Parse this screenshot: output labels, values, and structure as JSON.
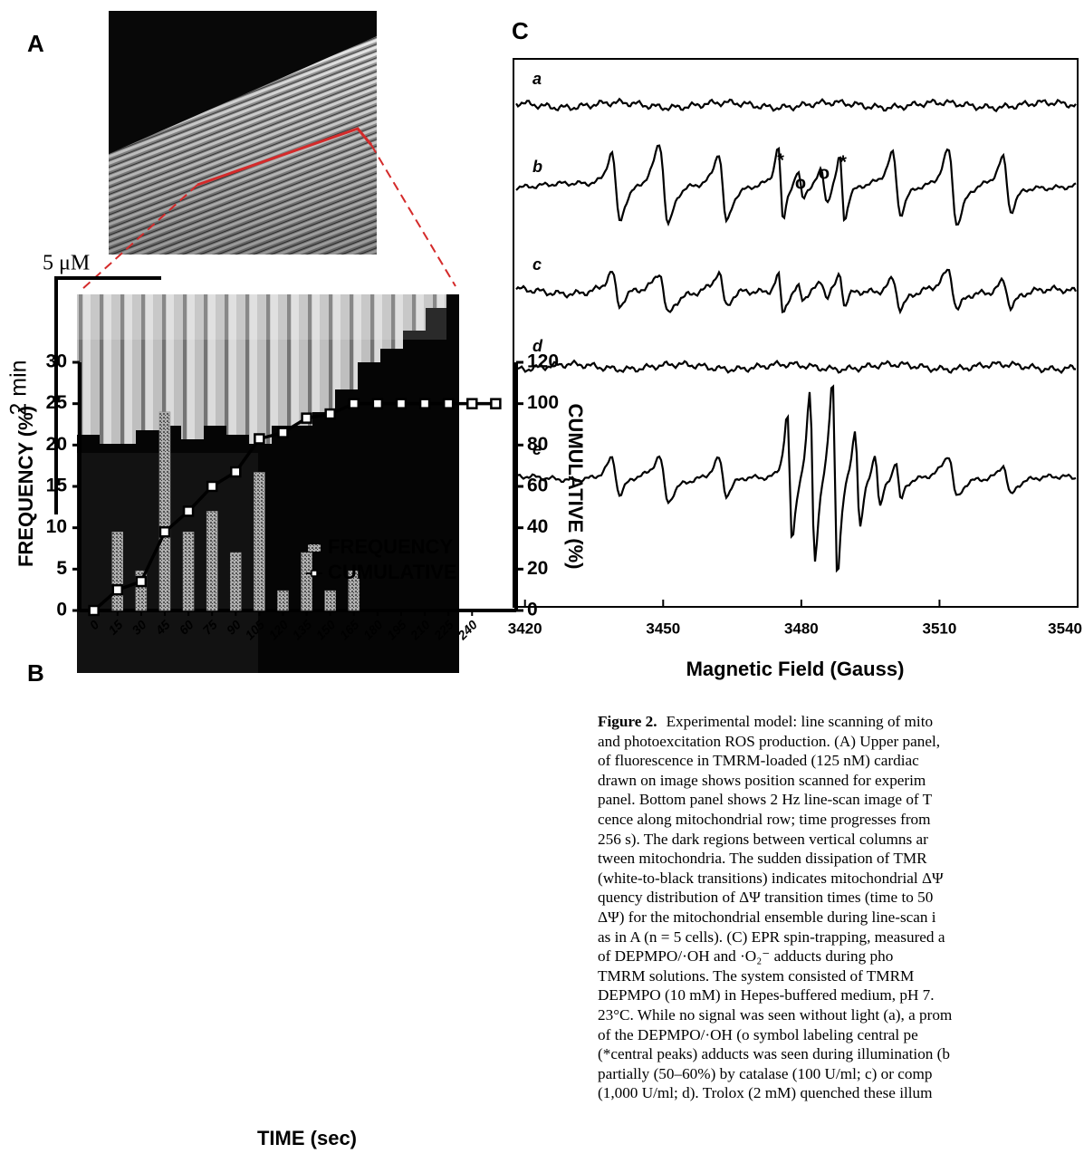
{
  "panel_a": {
    "label": "A",
    "scale_x": "5 μM",
    "scale_y": "2 min"
  },
  "panel_b": {
    "type": "bar_line",
    "label": "B",
    "xlabel": "TIME (sec)",
    "ylabel": "FREQUENCY (%)",
    "y2label": "CUMULATIVE (%)",
    "xlim": [
      -9,
      268
    ],
    "xticks": [
      0,
      15,
      30,
      45,
      60,
      75,
      90,
      105,
      120,
      135,
      150,
      165,
      180,
      195,
      210,
      225,
      240
    ],
    "ylim": [
      0,
      30
    ],
    "yticks": [
      0,
      5,
      10,
      15,
      20,
      25,
      30
    ],
    "y2lim": [
      0,
      120
    ],
    "y2ticks": [
      0,
      20,
      40,
      60,
      80,
      100,
      120
    ],
    "series": [
      {
        "name": "FREQUENCY",
        "type": "bar",
        "color": "#8c8c8c",
        "x": [
          15,
          30,
          45,
          60,
          75,
          90,
          105,
          120,
          135,
          150,
          165
        ],
        "values": [
          9.5,
          4.8,
          24,
          9.5,
          12,
          7,
          16.7,
          2.4,
          7,
          2.4,
          4.8
        ]
      },
      {
        "name": "CUMULATIVE",
        "type": "line",
        "axis": "y2",
        "color": "#000000",
        "x": [
          0,
          15,
          30,
          45,
          60,
          75,
          90,
          105,
          120,
          135,
          150,
          165,
          180,
          195,
          210,
          225,
          240,
          255
        ],
        "values": [
          0,
          10,
          14,
          38,
          48,
          60,
          67,
          83,
          86,
          93,
          95,
          100,
          100,
          100,
          100,
          100,
          100,
          100
        ]
      }
    ]
  },
  "panel_c": {
    "label": "C",
    "xlabel": "Magnetic Field (Gauss)",
    "xlim": [
      3417.5,
      3540
    ],
    "xticks": [
      3420,
      3450,
      3480,
      3510,
      3540
    ],
    "traces": [
      "a",
      "b",
      "c",
      "d",
      "e"
    ],
    "annotations": [
      "*",
      "o",
      "o",
      "*"
    ]
  },
  "caption": {
    "label": "Figure 2.",
    "lines": [
      "Experimental model: line scanning of mito",
      "and photoexcitation ROS production. (A) Upper panel,",
      "of fluorescence in TMRM-loaded (125 nM) cardiac",
      "drawn on image shows position scanned for experim",
      "panel. Bottom panel shows 2 Hz line-scan image of T",
      "cence along mitochondrial row; time progresses from",
      "256 s). The dark regions between vertical columns ar",
      "tween mitochondria. The sudden dissipation of TMR",
      "(white-to-black transitions) indicates mitochondrial ΔΨ",
      "quency distribution of ΔΨ transition times (time to 50",
      "ΔΨ) for the mitochondrial ensemble during line-scan i",
      "as in A (n = 5 cells). (C) EPR spin-trapping, measured a",
      "of DEPMPO/·OH and ·O₂⁻ adducts during pho",
      "TMRM solutions. The system consisted of TMRM",
      "DEPMPO (10 mM) in Hepes-buffered medium, pH 7.",
      "23°C. While no signal was seen without light (a), a prom",
      "of the DEPMPO/·OH (o symbol labeling central pe",
      "(*central peaks) adducts was seen during illumination (b",
      "partially (50–60%) by catalase (100 U/ml; c) or comp",
      "(1,000 U/ml; d). Trolox (2 mM) quenched these illum"
    ]
  }
}
